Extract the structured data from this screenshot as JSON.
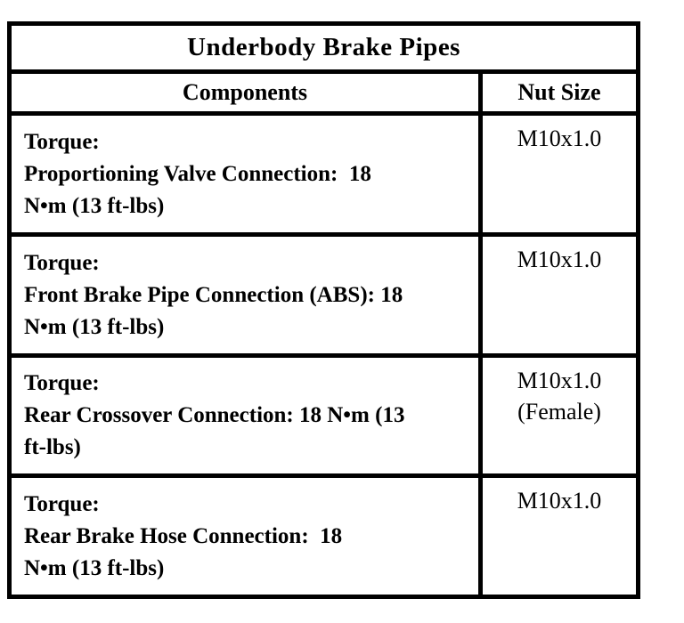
{
  "page": {
    "background_color": "#ffffff",
    "rule_color": "#000000"
  },
  "table": {
    "title": "Underbody Brake Pipes",
    "columns": [
      {
        "label": "Components"
      },
      {
        "label": "Nut Size"
      }
    ],
    "rows": [
      {
        "component": "Torque:\nProportioning Valve Connection:  18\nN•m (13 ft-lbs)",
        "nut_size": "M10x1.0"
      },
      {
        "component": "Torque:\nFront Brake Pipe Connection (ABS): 18\nN•m (13 ft-lbs)",
        "nut_size": "M10x1.0"
      },
      {
        "component": "Torque:\nRear Crossover Connection: 18 N•m (13\nft-lbs)",
        "nut_size": "M10x1.0\n(Female)"
      },
      {
        "component": "Torque:\nRear Brake Hose Connection:  18\nN•m (13 ft-lbs)",
        "nut_size": "M10x1.0"
      }
    ]
  }
}
